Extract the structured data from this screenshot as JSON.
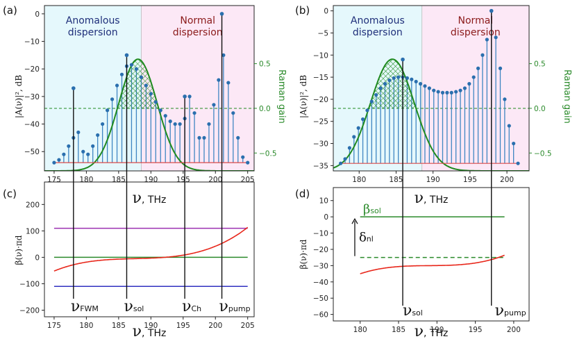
{
  "chart_data": [
    {
      "id": "a",
      "panel_label": "(a)",
      "type": "stem",
      "ylabel": "|A(ν)|², dB",
      "xlabel_symbol": "ν",
      "xlabel_unit": ", THz",
      "xlim": [
        173.5,
        206
      ],
      "ylim": [
        -57,
        3
      ],
      "xticks": [
        175,
        180,
        185,
        190,
        195,
        200,
        205
      ],
      "yticks": [
        0,
        -10,
        -20,
        -30,
        -40,
        -50
      ],
      "right_axis": {
        "label": "Raman gain",
        "ylim": [
          -0.7,
          1.15
        ],
        "ticks": [
          0.5,
          0.0,
          -0.5
        ]
      },
      "regions": [
        {
          "label_lines": [
            "Anomalous",
            "dispersion"
          ],
          "x0": 173.5,
          "x1": 188.5,
          "color": "#e5f8fc",
          "text_color": "#1f2f7a"
        },
        {
          "label_lines": [
            "Normal",
            "dispersion"
          ],
          "x0": 188.5,
          "x1": 206,
          "color": "#fce8f6",
          "text_color": "#8b1a1a"
        }
      ],
      "stems": {
        "baseline": -54,
        "x": [
          175,
          175.75,
          176.5,
          177.25,
          178,
          178.75,
          179.5,
          180.25,
          181,
          181.75,
          182.5,
          183.25,
          184,
          184.75,
          185.5,
          186.25,
          187,
          187.75,
          188.5,
          189.25,
          190,
          190.75,
          191.5,
          192.25,
          193,
          193.75,
          194.5,
          195.25,
          196,
          196.75,
          197.5,
          198.25,
          199,
          199.75,
          200.5,
          201.25,
          202,
          202.75,
          203.5,
          204.25,
          205
        ],
        "y": [
          -54,
          -53,
          -51,
          -48,
          -45,
          -43,
          -50,
          -51,
          -48,
          -44,
          -40,
          -35,
          -31,
          -26,
          -22,
          -19,
          -18.5,
          -20,
          -23,
          -26,
          -29,
          -32,
          -35,
          -37,
          -39,
          -40,
          -40,
          -38,
          -30,
          -36,
          -45,
          -45,
          -40,
          -33,
          -24,
          -15,
          -25,
          -36,
          -45,
          -52,
          -54
        ]
      },
      "reference_lines": [
        {
          "name": "raman-zero",
          "y_right": 0,
          "style": "dashed"
        }
      ],
      "raman_gain": {
        "center": 188,
        "width": 4.2,
        "peak": 0.55,
        "offset": -0.7
      },
      "highlight_stems": [
        {
          "x": 178,
          "peak": -27
        },
        {
          "x": 186.25,
          "peak": -15
        },
        {
          "x": 195.25,
          "peak": -30
        },
        {
          "x": 201,
          "peak": 0
        }
      ],
      "vertical_lines": [
        178,
        186.25,
        195.25,
        201
      ]
    },
    {
      "id": "b",
      "panel_label": "(b)",
      "type": "stem",
      "ylabel": "|A(ν)|², dB",
      "xlabel_symbol": "ν",
      "xlabel_unit": ", THz",
      "xlim": [
        176.5,
        203
      ],
      "ylim": [
        -36.2,
        1.2
      ],
      "xticks": [
        180,
        185,
        190,
        195,
        200
      ],
      "yticks": [
        0,
        -5,
        -10,
        -15,
        -20,
        -25,
        -30,
        -35
      ],
      "right_axis": {
        "label": "Raman gain",
        "ylim": [
          -0.7,
          1.15
        ],
        "ticks": [
          0.5,
          0.0,
          -0.5
        ]
      },
      "regions": [
        {
          "label_lines": [
            "Anomalous",
            "dispersion"
          ],
          "x0": 176.5,
          "x1": 188.5,
          "color": "#e5f8fc",
          "text_color": "#1f2f7a"
        },
        {
          "label_lines": [
            "Normal",
            "dispersion"
          ],
          "x0": 188.5,
          "x1": 203,
          "color": "#fce8f6",
          "text_color": "#8b1a1a"
        }
      ],
      "stems": {
        "baseline": -34.5,
        "x": [
          177.5,
          178.1,
          178.7,
          179.3,
          179.9,
          180.5,
          181.1,
          181.7,
          182.3,
          182.9,
          183.5,
          184.1,
          184.7,
          185.3,
          185.9,
          186.5,
          187.1,
          187.7,
          188.3,
          188.9,
          189.5,
          190.1,
          190.7,
          191.3,
          191.9,
          192.5,
          193.1,
          193.7,
          194.3,
          194.9,
          195.5,
          196.1,
          196.7,
          197.3,
          197.9,
          198.5,
          199.1,
          199.7,
          200.3,
          200.9,
          201.5
        ],
        "y": [
          -34.5,
          -33.5,
          -31,
          -28.5,
          -26.5,
          -24.5,
          -22.5,
          -20.5,
          -19,
          -17.5,
          -16.5,
          -15.7,
          -15.2,
          -15,
          -15,
          -15.2,
          -15.5,
          -16,
          -16.5,
          -17,
          -17.5,
          -18,
          -18.3,
          -18.5,
          -18.5,
          -18.5,
          -18.3,
          -18,
          -17.5,
          -16.5,
          -15,
          -13,
          -10,
          -6.5,
          0,
          -6,
          -13,
          -20,
          -26,
          -30,
          -34.5
        ]
      },
      "reference_lines": [
        {
          "name": "raman-zero",
          "y_right": 0,
          "style": "dashed"
        }
      ],
      "raman_gain": {
        "center": 184.5,
        "width": 4.2,
        "peak": 0.55,
        "offset": -0.7
      },
      "highlight_stems": [
        {
          "x": 185.9,
          "peak": -11
        },
        {
          "x": 197.9,
          "peak": 0
        }
      ],
      "vertical_lines": [
        185.9,
        197.9
      ]
    },
    {
      "id": "c",
      "panel_label": "(c)",
      "type": "line",
      "ylabel": "β(ν)·πd",
      "xlabel_symbol": "ν",
      "xlabel_unit": ", THz",
      "xlim": [
        173.5,
        206
      ],
      "ylim": [
        -225,
        285
      ],
      "xticks": [
        175,
        180,
        185,
        190,
        195,
        200,
        205
      ],
      "yticks": [
        200,
        100,
        0,
        -100,
        -200
      ],
      "dispersion_curve": {
        "x0": 187.5,
        "a": 0.02,
        "b": 0.63,
        "c": -5,
        "x_range": [
          175,
          205
        ],
        "color": "#e8261a"
      },
      "horizontal_lines": [
        {
          "y": 110,
          "color": "#9b30b0",
          "x_range": [
            175,
            205
          ]
        },
        {
          "y": 0,
          "color": "#2a8a2a",
          "x_range": [
            175,
            205
          ]
        },
        {
          "y": -110,
          "color": "#3030c0",
          "x_range": [
            175,
            205
          ]
        }
      ],
      "vertical_lines": [
        178,
        186.25,
        195.25,
        201
      ],
      "frequency_labels": [
        {
          "x": 178,
          "symbol": "ν",
          "sub": "FWM"
        },
        {
          "x": 186.25,
          "symbol": "ν",
          "sub": "sol"
        },
        {
          "x": 195.25,
          "symbol": "ν",
          "sub": "Ch"
        },
        {
          "x": 201,
          "symbol": "ν",
          "sub": "pump"
        }
      ]
    },
    {
      "id": "d",
      "panel_label": "(d)",
      "type": "line",
      "ylabel": "β(ν)·πd",
      "xlabel_symbol": "ν",
      "xlabel_unit": ", THz",
      "xlim": [
        176.5,
        202
      ],
      "ylim": [
        -64,
        18
      ],
      "xticks": [
        180,
        185,
        190,
        195,
        200
      ],
      "yticks": [
        10,
        0,
        -10,
        -20,
        -30,
        -40,
        -50,
        -60
      ],
      "dispersion_curve": {
        "x0": 189,
        "a": 0.00633,
        "b": 0.0443,
        "c": -30,
        "x_range": [
          180,
          198.8
        ],
        "color": "#e8261a"
      },
      "horizontal_lines": [
        {
          "y": 0,
          "color": "#2a8a2a",
          "x_range": [
            180,
            198.8
          ],
          "style": "solid"
        },
        {
          "y": -25,
          "color": "#2a8a2a",
          "x_range": [
            180,
            198.8
          ],
          "style": "dashed"
        }
      ],
      "vertical_lines": [
        185.9,
        197.9
      ],
      "annotations": [
        {
          "symbol": "β",
          "sub": "sol",
          "y": 0
        },
        {
          "symbol": "δ",
          "sub": "nl",
          "y_from": -25,
          "y_to": 0
        }
      ],
      "frequency_labels": [
        {
          "x": 185.9,
          "symbol": "ν",
          "sub": "sol"
        },
        {
          "x": 197.9,
          "symbol": "ν",
          "sub": "pump"
        }
      ]
    }
  ],
  "colors": {
    "stem": "#3f86c2",
    "marker": "#2a6fae",
    "baseline": "#d94a4a",
    "raman": "#1f8a1f",
    "vline": "#111111"
  }
}
